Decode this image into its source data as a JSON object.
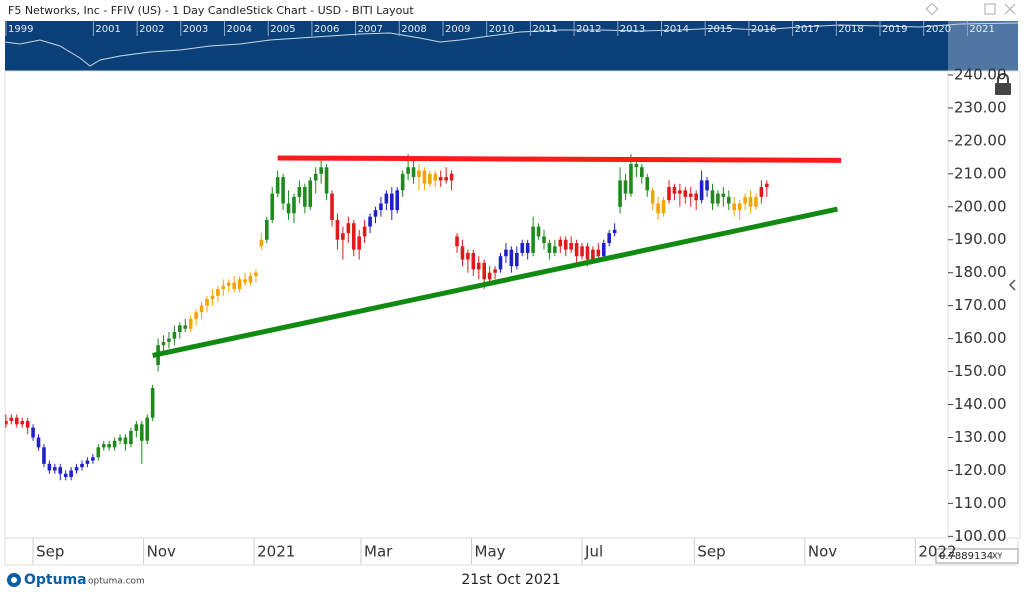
{
  "header": {
    "title": "F5 Networks, Inc - FFIV (US) - 1 Day CandleStick Chart - USD - BITI Layout"
  },
  "overview": {
    "years": [
      "1999",
      "2001",
      "2002",
      "2003",
      "2004",
      "2005",
      "2006",
      "2007",
      "2008",
      "2009",
      "2010",
      "2011",
      "2012",
      "2013",
      "2014",
      "2015",
      "2016",
      "2017",
      "2018",
      "2019",
      "2020",
      "2021"
    ]
  },
  "footer": {
    "brand": "Optuma",
    "site": "optuma.com",
    "date": "21st Oct 2021",
    "cursor_value": "0.7889134",
    "cursor_mode": "XY"
  },
  "chart_data": {
    "type": "candlestick",
    "xlim": [
      -15.5,
      505
    ],
    "ylim": [
      99.5,
      241.2
    ],
    "xticks": [
      {
        "value": 0,
        "label": "Sep"
      },
      {
        "value": 61,
        "label": "Nov"
      },
      {
        "value": 122,
        "label": "2021"
      },
      {
        "value": 181,
        "label": "Mar"
      },
      {
        "value": 242,
        "label": "May"
      },
      {
        "value": 303,
        "label": "Jul"
      },
      {
        "value": 365,
        "label": "Sep"
      },
      {
        "value": 426,
        "label": "Nov"
      },
      {
        "value": 487,
        "label": "2022"
      }
    ],
    "yticks": [
      {
        "value": 240,
        "label": "240.00"
      },
      {
        "value": 230,
        "label": "230.00"
      },
      {
        "value": 220,
        "label": "220.00"
      },
      {
        "value": 210,
        "label": "210.00"
      },
      {
        "value": 200,
        "label": "200.00"
      },
      {
        "value": 190,
        "label": "190.00"
      },
      {
        "value": 180,
        "label": "180.00"
      },
      {
        "value": 170,
        "label": "170.00"
      },
      {
        "value": 160,
        "label": "160.00"
      },
      {
        "value": 150,
        "label": "150.00"
      },
      {
        "value": 140,
        "label": "140.00"
      },
      {
        "value": 130,
        "label": "130.00"
      },
      {
        "value": 120,
        "label": "120.00"
      },
      {
        "value": 110,
        "label": "110.00"
      },
      {
        "value": 100,
        "label": "100.00"
      }
    ],
    "series": [
      {
        "color": "#e01a1a",
        "x": [
          -15,
          -12,
          -9,
          -6,
          -3
        ],
        "open": [
          134,
          135,
          136,
          134,
          135
        ],
        "high": [
          137,
          137,
          137,
          136,
          136
        ],
        "low": [
          133,
          134,
          133,
          133,
          131
        ],
        "close": [
          135,
          136,
          134,
          135,
          133
        ]
      },
      {
        "color": "#2020c8",
        "x": [
          0,
          3,
          6,
          9,
          12,
          15,
          18,
          21,
          24,
          27,
          30,
          33
        ],
        "open": [
          133,
          130,
          127,
          122,
          120,
          121,
          119,
          118,
          120,
          121,
          122,
          123
        ],
        "high": [
          134,
          131,
          128,
          123,
          122,
          122,
          120,
          121,
          122,
          123,
          124,
          125
        ],
        "low": [
          129,
          126,
          121,
          119,
          119,
          117,
          117,
          117,
          119,
          120,
          121,
          122
        ],
        "close": [
          130,
          127,
          122,
          120,
          121,
          119,
          118,
          120,
          121,
          122,
          123,
          124
        ]
      },
      {
        "color": "#1e8a1e",
        "x": [
          36,
          39,
          42,
          45,
          48,
          51,
          54,
          57,
          60,
          63,
          66,
          69,
          72,
          75,
          78,
          81,
          84
        ],
        "open": [
          124,
          127,
          128,
          127,
          129,
          130,
          128,
          132,
          134,
          129,
          136,
          152,
          158,
          159,
          160,
          162,
          164
        ],
        "high": [
          128,
          129,
          129,
          130,
          131,
          131,
          133,
          135,
          135,
          137,
          146,
          160,
          161,
          162,
          164,
          165,
          166
        ],
        "low": [
          123,
          126,
          126,
          126,
          128,
          126,
          127,
          130,
          122,
          128,
          135,
          150,
          156,
          157,
          158,
          160,
          162
        ],
        "close": [
          127,
          128,
          127,
          129,
          130,
          128,
          132,
          134,
          129,
          136,
          145,
          158,
          159,
          160,
          162,
          164,
          163
        ]
      },
      {
        "color": "#f5a300",
        "x": [
          87,
          90,
          93,
          96,
          99,
          102,
          105,
          108,
          111,
          114,
          117,
          120,
          123,
          126
        ],
        "open": [
          163,
          166,
          168,
          170,
          172,
          173,
          175,
          176,
          177,
          175,
          178,
          177,
          179,
          188
        ],
        "high": [
          167,
          169,
          171,
          173,
          175,
          176,
          178,
          178,
          179,
          179,
          180,
          180,
          181,
          192
        ],
        "low": [
          162,
          164,
          166,
          168,
          170,
          171,
          173,
          174,
          174,
          174,
          176,
          176,
          177,
          187
        ],
        "close": [
          166,
          168,
          170,
          172,
          173,
          175,
          176,
          177,
          175,
          178,
          177,
          179,
          180,
          190
        ]
      },
      {
        "color": "#1e8a1e",
        "x": [
          129,
          132,
          135,
          138,
          141,
          144,
          147,
          150,
          153,
          156,
          159,
          162
        ],
        "open": [
          190,
          196,
          204,
          209,
          201,
          198,
          203,
          206,
          200,
          208,
          210,
          212
        ],
        "high": [
          197,
          206,
          211,
          210,
          205,
          204,
          208,
          207,
          209,
          212,
          214,
          213
        ],
        "low": [
          189,
          195,
          203,
          199,
          196,
          195,
          201,
          198,
          199,
          204,
          207,
          202
        ],
        "close": [
          196,
          204,
          209,
          201,
          198,
          203,
          206,
          200,
          208,
          210,
          212,
          204
        ]
      },
      {
        "color": "#e01a1a",
        "x": [
          165,
          168,
          171,
          174,
          177,
          180,
          183
        ],
        "open": [
          204,
          196,
          190,
          192,
          195,
          187,
          191
        ],
        "high": [
          205,
          198,
          194,
          197,
          196,
          193,
          196
        ],
        "low": [
          194,
          187,
          184,
          189,
          185,
          184,
          189
        ],
        "close": [
          196,
          190,
          192,
          195,
          187,
          191,
          194
        ]
      },
      {
        "color": "#2020c8",
        "x": [
          186,
          189,
          192,
          195,
          198,
          201
        ],
        "open": [
          194,
          197,
          199,
          201,
          204,
          199
        ],
        "high": [
          198,
          200,
          203,
          205,
          206,
          206
        ],
        "low": [
          192,
          195,
          197,
          199,
          196,
          198
        ],
        "close": [
          197,
          199,
          201,
          204,
          199,
          205
        ]
      },
      {
        "color": "#1e8a1e",
        "x": [
          204,
          207,
          210
        ],
        "open": [
          205,
          210,
          212
        ],
        "high": [
          211,
          216,
          215
        ],
        "low": [
          203,
          208,
          207
        ],
        "close": [
          210,
          212,
          209
        ]
      },
      {
        "color": "#f5a300",
        "x": [
          213,
          216,
          219,
          222
        ],
        "open": [
          209,
          211,
          207,
          210
        ],
        "high": [
          213,
          212,
          211,
          211
        ],
        "low": [
          205,
          205,
          206,
          206
        ],
        "close": [
          211,
          207,
          210,
          208
        ]
      },
      {
        "color": "#e01a1a",
        "x": [
          225,
          228,
          231,
          234,
          237,
          240,
          243,
          246,
          249,
          252,
          255
        ],
        "open": [
          208,
          209,
          208,
          191,
          188,
          184,
          186,
          181,
          183,
          178,
          180
        ],
        "high": [
          211,
          212,
          211,
          192,
          190,
          187,
          187,
          185,
          184,
          182,
          182
        ],
        "low": [
          206,
          207,
          205,
          186,
          182,
          180,
          179,
          178,
          175,
          177,
          178
        ],
        "close": [
          209,
          208,
          210,
          188,
          184,
          186,
          181,
          183,
          178,
          180,
          181
        ]
      },
      {
        "color": "#2020c8",
        "x": [
          258,
          261,
          264,
          267,
          270,
          273
        ],
        "open": [
          181,
          185,
          187,
          182,
          186,
          189
        ],
        "high": [
          186,
          189,
          188,
          188,
          190,
          190
        ],
        "low": [
          180,
          183,
          180,
          181,
          185,
          184
        ],
        "close": [
          185,
          187,
          182,
          186,
          189,
          186
        ]
      },
      {
        "color": "#1e8a1e",
        "x": [
          276,
          279,
          282,
          285,
          288
        ],
        "open": [
          186,
          194,
          191,
          189,
          186
        ],
        "high": [
          197,
          195,
          193,
          190,
          190
        ],
        "low": [
          185,
          190,
          187,
          184,
          185
        ],
        "close": [
          194,
          191,
          189,
          186,
          188
        ]
      },
      {
        "color": "#e01a1a",
        "x": [
          291,
          294,
          297,
          300,
          303,
          306,
          309,
          312
        ],
        "open": [
          188,
          190,
          187,
          189,
          185,
          188,
          184,
          187
        ],
        "high": [
          191,
          191,
          191,
          190,
          189,
          189,
          188,
          189
        ],
        "low": [
          186,
          185,
          186,
          183,
          184,
          182,
          183,
          184
        ],
        "close": [
          190,
          187,
          189,
          185,
          188,
          184,
          187,
          185
        ]
      },
      {
        "color": "#2020c8",
        "x": [
          315,
          318,
          321
        ],
        "open": [
          185,
          189,
          192
        ],
        "high": [
          190,
          193,
          195
        ],
        "low": [
          184,
          188,
          191
        ],
        "close": [
          189,
          192,
          193
        ]
      },
      {
        "color": "#1e8a1e",
        "x": [
          324,
          327,
          330,
          333,
          336,
          339
        ],
        "open": [
          200,
          208,
          204,
          213,
          212,
          209
        ],
        "high": [
          212,
          210,
          216,
          215,
          213,
          210
        ],
        "low": [
          198,
          202,
          203,
          209,
          207,
          203
        ],
        "close": [
          208,
          204,
          213,
          212,
          209,
          205
        ]
      },
      {
        "color": "#f5a300",
        "x": [
          342,
          345,
          348
        ],
        "open": [
          205,
          201,
          198
        ],
        "high": [
          206,
          203,
          203
        ],
        "low": [
          199,
          196,
          197
        ],
        "close": [
          201,
          198,
          202
        ]
      },
      {
        "color": "#e01a1a",
        "x": [
          351,
          354,
          357,
          360,
          363,
          366
        ],
        "open": [
          202,
          206,
          204,
          205,
          203,
          204
        ],
        "high": [
          208,
          207,
          207,
          206,
          206,
          205
        ],
        "low": [
          201,
          202,
          200,
          201,
          200,
          199
        ],
        "close": [
          206,
          204,
          205,
          203,
          204,
          202
        ]
      },
      {
        "color": "#2020c8",
        "x": [
          369,
          372
        ],
        "open": [
          202,
          208
        ],
        "high": [
          211,
          209
        ],
        "low": [
          201,
          203
        ],
        "close": [
          208,
          205
        ]
      },
      {
        "color": "#1e8a1e",
        "x": [
          375,
          378,
          381,
          384
        ],
        "open": [
          205,
          201,
          204,
          203
        ],
        "high": [
          207,
          205,
          206,
          205
        ],
        "low": [
          199,
          200,
          200,
          199
        ],
        "close": [
          201,
          204,
          203,
          201
        ]
      },
      {
        "color": "#f5a300",
        "x": [
          387,
          390,
          393,
          396,
          399
        ],
        "open": [
          201,
          199,
          201,
          203,
          200
        ],
        "high": [
          203,
          202,
          204,
          205,
          204
        ],
        "low": [
          197,
          196,
          199,
          198,
          199
        ],
        "close": [
          199,
          201,
          203,
          200,
          203
        ]
      },
      {
        "color": "#e01a1a",
        "x": [
          402,
          405
        ],
        "open": [
          203,
          206
        ],
        "high": [
          208,
          208
        ],
        "low": [
          201,
          203
        ],
        "close": [
          206,
          207
        ]
      }
    ],
    "trendlines": [
      {
        "color": "#ff1a1a",
        "x": [
          135,
          446
        ],
        "y": [
          214.8,
          214.1
        ]
      },
      {
        "color": "#118a11",
        "x": [
          66,
          444
        ],
        "y": [
          154.9,
          199.3
        ]
      }
    ]
  }
}
